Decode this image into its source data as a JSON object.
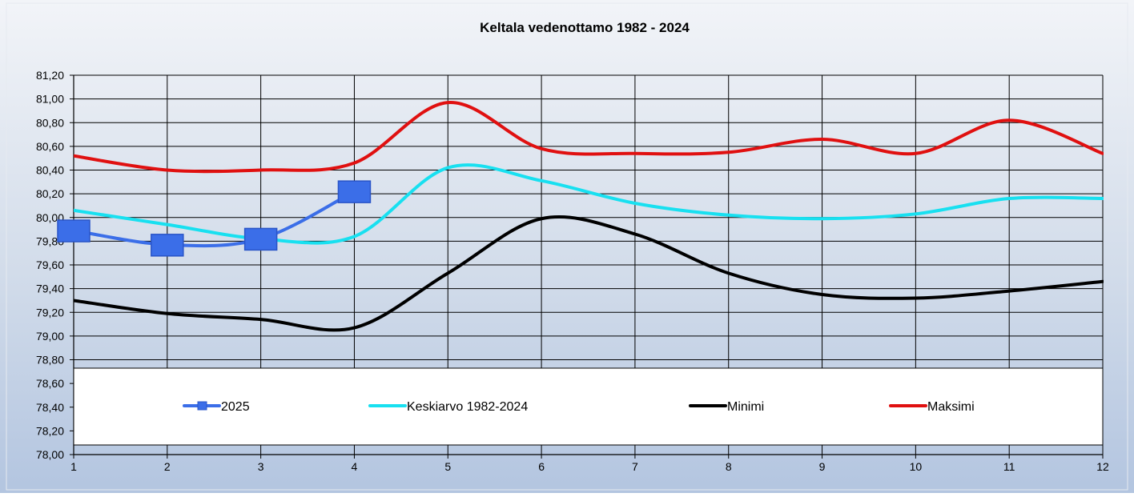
{
  "chart_data": {
    "type": "line",
    "title": "Keltala vedenottamo 1982 - 2024",
    "xlabel": "",
    "ylabel": "",
    "x": [
      1,
      2,
      3,
      4,
      5,
      6,
      7,
      8,
      9,
      10,
      11,
      12
    ],
    "ylim": [
      78.0,
      81.2
    ],
    "y_ticks": [
      "78,00",
      "78,20",
      "78,40",
      "78,60",
      "78,80",
      "79,00",
      "79,20",
      "79,40",
      "79,60",
      "79,80",
      "80,00",
      "80,20",
      "80,40",
      "80,60",
      "80,80",
      "81,00",
      "81,20"
    ],
    "x_ticks": [
      "1",
      "2",
      "3",
      "4",
      "5",
      "6",
      "7",
      "8",
      "9",
      "10",
      "11",
      "12"
    ],
    "grid": true,
    "legend_position": "bottom (inside plot area)",
    "series": [
      {
        "name": "2025",
        "color": "#3b6ee8",
        "marker": "square",
        "x": [
          1,
          2,
          3,
          4
        ],
        "values": [
          79.89,
          79.77,
          79.82,
          80.22
        ]
      },
      {
        "name": "Keskiarvo 1982-2024",
        "color": "#18e0f0",
        "marker": "none",
        "x": [
          1,
          2,
          3,
          4,
          5,
          6,
          7,
          8,
          9,
          10,
          11,
          12
        ],
        "values": [
          80.06,
          79.94,
          79.82,
          79.84,
          80.42,
          80.31,
          80.12,
          80.02,
          79.99,
          80.03,
          80.16,
          80.16
        ]
      },
      {
        "name": "Minimi",
        "color": "#000000",
        "marker": "none",
        "x": [
          1,
          2,
          3,
          4,
          5,
          6,
          7,
          8,
          9,
          10,
          11,
          12
        ],
        "values": [
          79.3,
          79.19,
          79.14,
          79.07,
          79.53,
          79.99,
          79.86,
          79.53,
          79.35,
          79.32,
          79.38,
          79.46
        ]
      },
      {
        "name": "Maksimi",
        "color": "#e01010",
        "marker": "none",
        "x": [
          1,
          2,
          3,
          4,
          5,
          6,
          7,
          8,
          9,
          10,
          11,
          12
        ],
        "values": [
          80.52,
          80.4,
          80.4,
          80.46,
          80.97,
          80.58,
          80.54,
          80.55,
          80.66,
          80.54,
          80.82,
          80.54
        ]
      }
    ]
  }
}
